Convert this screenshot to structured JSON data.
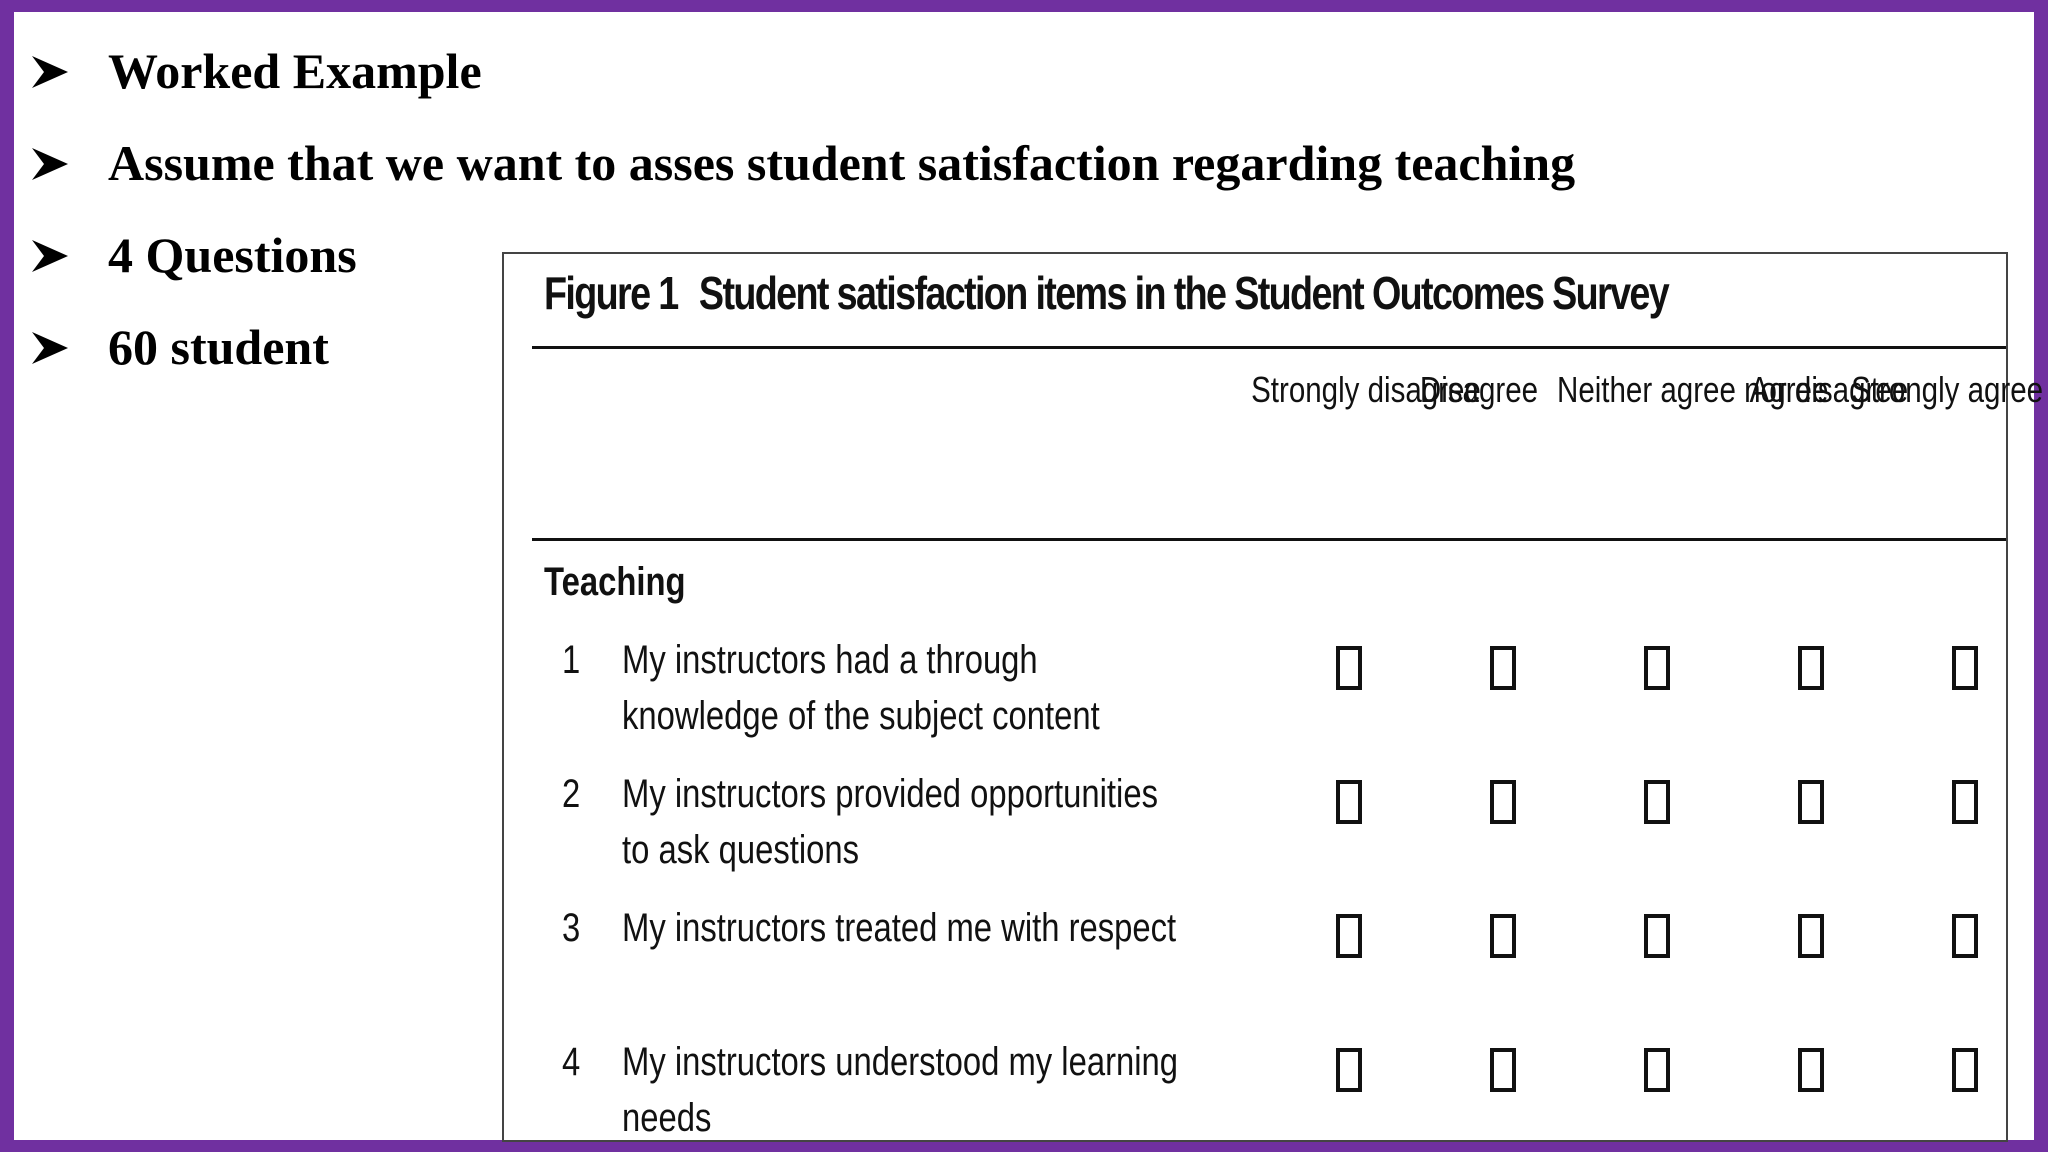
{
  "bullets": [
    {
      "icon": "arrow-bullet-icon",
      "text": "Worked Example"
    },
    {
      "icon": "arrow-bullet-icon",
      "text": "Assume that we want to asses student satisfaction regarding teaching"
    },
    {
      "icon": "arrow-bullet-icon",
      "text": "4 Questions"
    },
    {
      "icon": "arrow-bullet-icon",
      "text": "60 student"
    }
  ],
  "figure": {
    "number": "Figure 1",
    "title": "Student satisfaction items in the Student Outcomes Survey",
    "columns": [
      "Strongly disagree",
      "Disagree",
      "Neither agree nor disagree",
      "Agree",
      "Strongly agree"
    ],
    "section": "Teaching",
    "questions": [
      {
        "num": "1",
        "text": "My instructors had a through knowledge of the subject content"
      },
      {
        "num": "2",
        "text": "My instructors provided opportunities to ask questions"
      },
      {
        "num": "3",
        "text": "My instructors treated me with respect"
      },
      {
        "num": "4",
        "text": "My instructors understood my learning needs"
      }
    ]
  },
  "colors": {
    "border": "#7030a0",
    "text": "#000000"
  }
}
